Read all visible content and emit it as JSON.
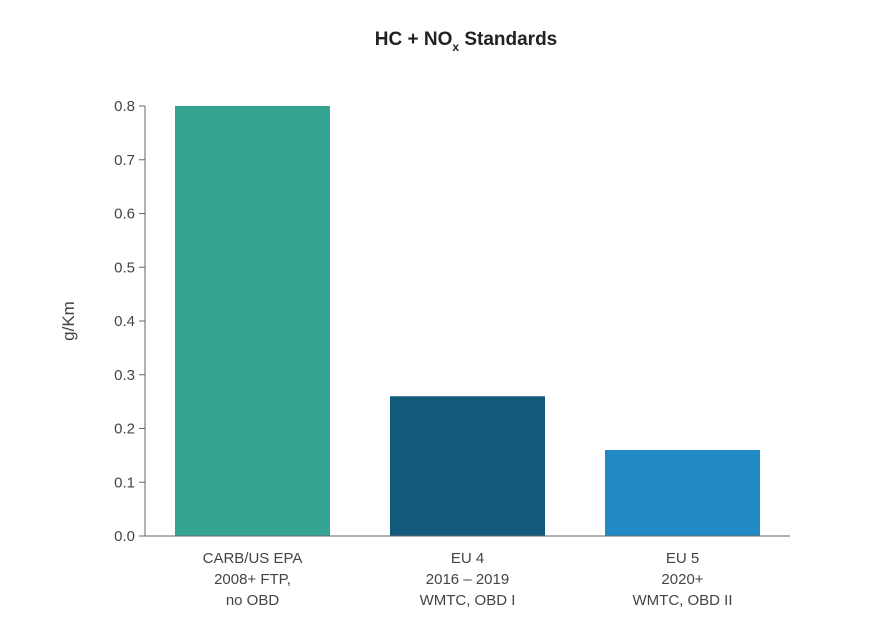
{
  "chart_data": {
    "type": "bar",
    "title": {
      "prefix": "HC + NO",
      "subscript": "x",
      "suffix": " Standards"
    },
    "ylabel": "g/Km",
    "xlabel": "",
    "ylim": [
      0,
      0.8
    ],
    "yticks": [
      "0.0",
      "0.1",
      "0.2",
      "0.3",
      "0.4",
      "0.5",
      "0.6",
      "0.7",
      "0.8"
    ],
    "categories": [
      [
        "CARB/US EPA",
        "2008+ FTP,",
        "no OBD"
      ],
      [
        "EU 4",
        "2016 – 2019",
        "WMTC, OBD I"
      ],
      [
        "EU 5",
        "2020+",
        "WMTC, OBD II"
      ]
    ],
    "values": [
      0.8,
      0.26,
      0.16
    ],
    "colors": [
      "#35a593",
      "#125a7c",
      "#2189c4"
    ],
    "grid": false,
    "legend": "none"
  }
}
